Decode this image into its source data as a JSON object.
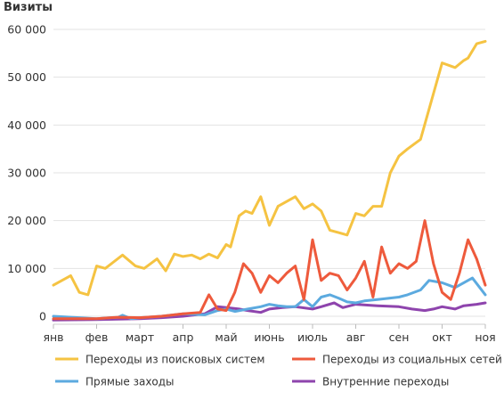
{
  "chart_data": {
    "type": "line",
    "ylabel": "Визиты",
    "ylim": [
      0,
      60000
    ],
    "yticks": [
      0,
      10000,
      20000,
      30000,
      40000,
      50000,
      60000
    ],
    "ytick_labels": [
      "0",
      "10 000",
      "20 000",
      "30 000",
      "40 000",
      "50 000",
      "60 000"
    ],
    "xlim": [
      0,
      10
    ],
    "xticks": [
      0,
      1,
      2,
      3,
      4,
      5,
      6,
      7,
      8,
      9,
      10
    ],
    "xtick_labels": [
      "янв",
      "фев",
      "март",
      "апр",
      "май",
      "июнь",
      "июль",
      "авг",
      "сен",
      "окт",
      "ноя"
    ],
    "grid": "horizontal",
    "legend_position": "bottom",
    "series": [
      {
        "name": "Переходы из поисковых систем",
        "color": "#F5C342",
        "x": [
          0,
          0.4,
          0.6,
          0.8,
          1.0,
          1.2,
          1.6,
          1.9,
          2.1,
          2.4,
          2.6,
          2.8,
          3.0,
          3.2,
          3.4,
          3.6,
          3.8,
          4.0,
          4.1,
          4.3,
          4.45,
          4.6,
          4.8,
          5.0,
          5.2,
          5.4,
          5.6,
          5.8,
          6.0,
          6.2,
          6.4,
          6.6,
          6.8,
          7.0,
          7.2,
          7.4,
          7.6,
          7.8,
          8.0,
          8.2,
          8.5,
          9.0,
          9.3,
          9.5,
          9.6,
          9.8,
          10.0
        ],
        "y": [
          6500,
          8500,
          5000,
          4500,
          10500,
          10000,
          12800,
          10500,
          10000,
          12000,
          9500,
          13000,
          12500,
          12800,
          12000,
          13000,
          12200,
          15000,
          14500,
          21000,
          22000,
          21500,
          25000,
          19000,
          23000,
          24000,
          25000,
          22500,
          23500,
          22000,
          18000,
          17500,
          17000,
          21500,
          21000,
          23000,
          23000,
          30000,
          33500,
          35000,
          37000,
          53000,
          52000,
          53500,
          54000,
          57000,
          57500
        ]
      },
      {
        "name": "Переходы из социальных сетей",
        "color": "#EE5A3C",
        "x": [
          0,
          1.0,
          1.5,
          2.0,
          2.5,
          3.0,
          3.4,
          3.6,
          3.8,
          4.0,
          4.2,
          4.4,
          4.6,
          4.8,
          5.0,
          5.2,
          5.4,
          5.6,
          5.8,
          6.0,
          6.2,
          6.4,
          6.6,
          6.8,
          7.0,
          7.2,
          7.4,
          7.6,
          7.8,
          8.0,
          8.2,
          8.4,
          8.6,
          8.8,
          9.0,
          9.2,
          9.4,
          9.6,
          9.8,
          10.0
        ],
        "y": [
          -500,
          -500,
          -200,
          -300,
          0,
          500,
          800,
          4500,
          1500,
          1200,
          5000,
          11000,
          9000,
          5000,
          8500,
          7000,
          9000,
          10500,
          3500,
          16000,
          7500,
          9000,
          8500,
          5500,
          8000,
          11500,
          4000,
          14500,
          9000,
          11000,
          10000,
          11500,
          20000,
          11000,
          5000,
          3500,
          9000,
          16000,
          12000,
          6500
        ]
      },
      {
        "name": "Прямые заходы",
        "color": "#5CAADF",
        "x": [
          0,
          1.0,
          1.5,
          1.6,
          1.8,
          2.0,
          2.5,
          3.0,
          3.5,
          3.8,
          4.0,
          4.2,
          4.5,
          4.8,
          5.0,
          5.2,
          5.4,
          5.6,
          5.8,
          6.0,
          6.2,
          6.4,
          6.6,
          6.8,
          7.0,
          7.2,
          7.5,
          8.0,
          8.2,
          8.5,
          8.7,
          9.0,
          9.3,
          9.5,
          9.7,
          10.0
        ],
        "y": [
          0,
          -500,
          -200,
          200,
          -500,
          -300,
          0,
          500,
          300,
          1200,
          1500,
          1000,
          1500,
          2000,
          2500,
          2200,
          2000,
          2000,
          3500,
          2000,
          4000,
          4500,
          3800,
          3000,
          2800,
          3200,
          3500,
          4000,
          4500,
          5500,
          7500,
          7000,
          6000,
          7000,
          8000,
          4500
        ]
      },
      {
        "name": "Внутренние переходы",
        "color": "#8E44AD",
        "x": [
          0,
          1.0,
          2.0,
          2.5,
          3.0,
          3.5,
          3.8,
          4.0,
          4.3,
          4.5,
          4.8,
          5.0,
          5.3,
          5.6,
          6.0,
          6.2,
          6.5,
          6.7,
          7.0,
          7.5,
          8.0,
          8.3,
          8.6,
          8.8,
          9.0,
          9.3,
          9.5,
          9.8,
          10.0
        ],
        "y": [
          -800,
          -700,
          -500,
          -300,
          0,
          500,
          2000,
          1800,
          1500,
          1200,
          800,
          1500,
          1800,
          2000,
          1500,
          2000,
          2800,
          1800,
          2500,
          2200,
          2000,
          1500,
          1200,
          1500,
          2000,
          1500,
          2200,
          2500,
          2800
        ]
      }
    ]
  }
}
